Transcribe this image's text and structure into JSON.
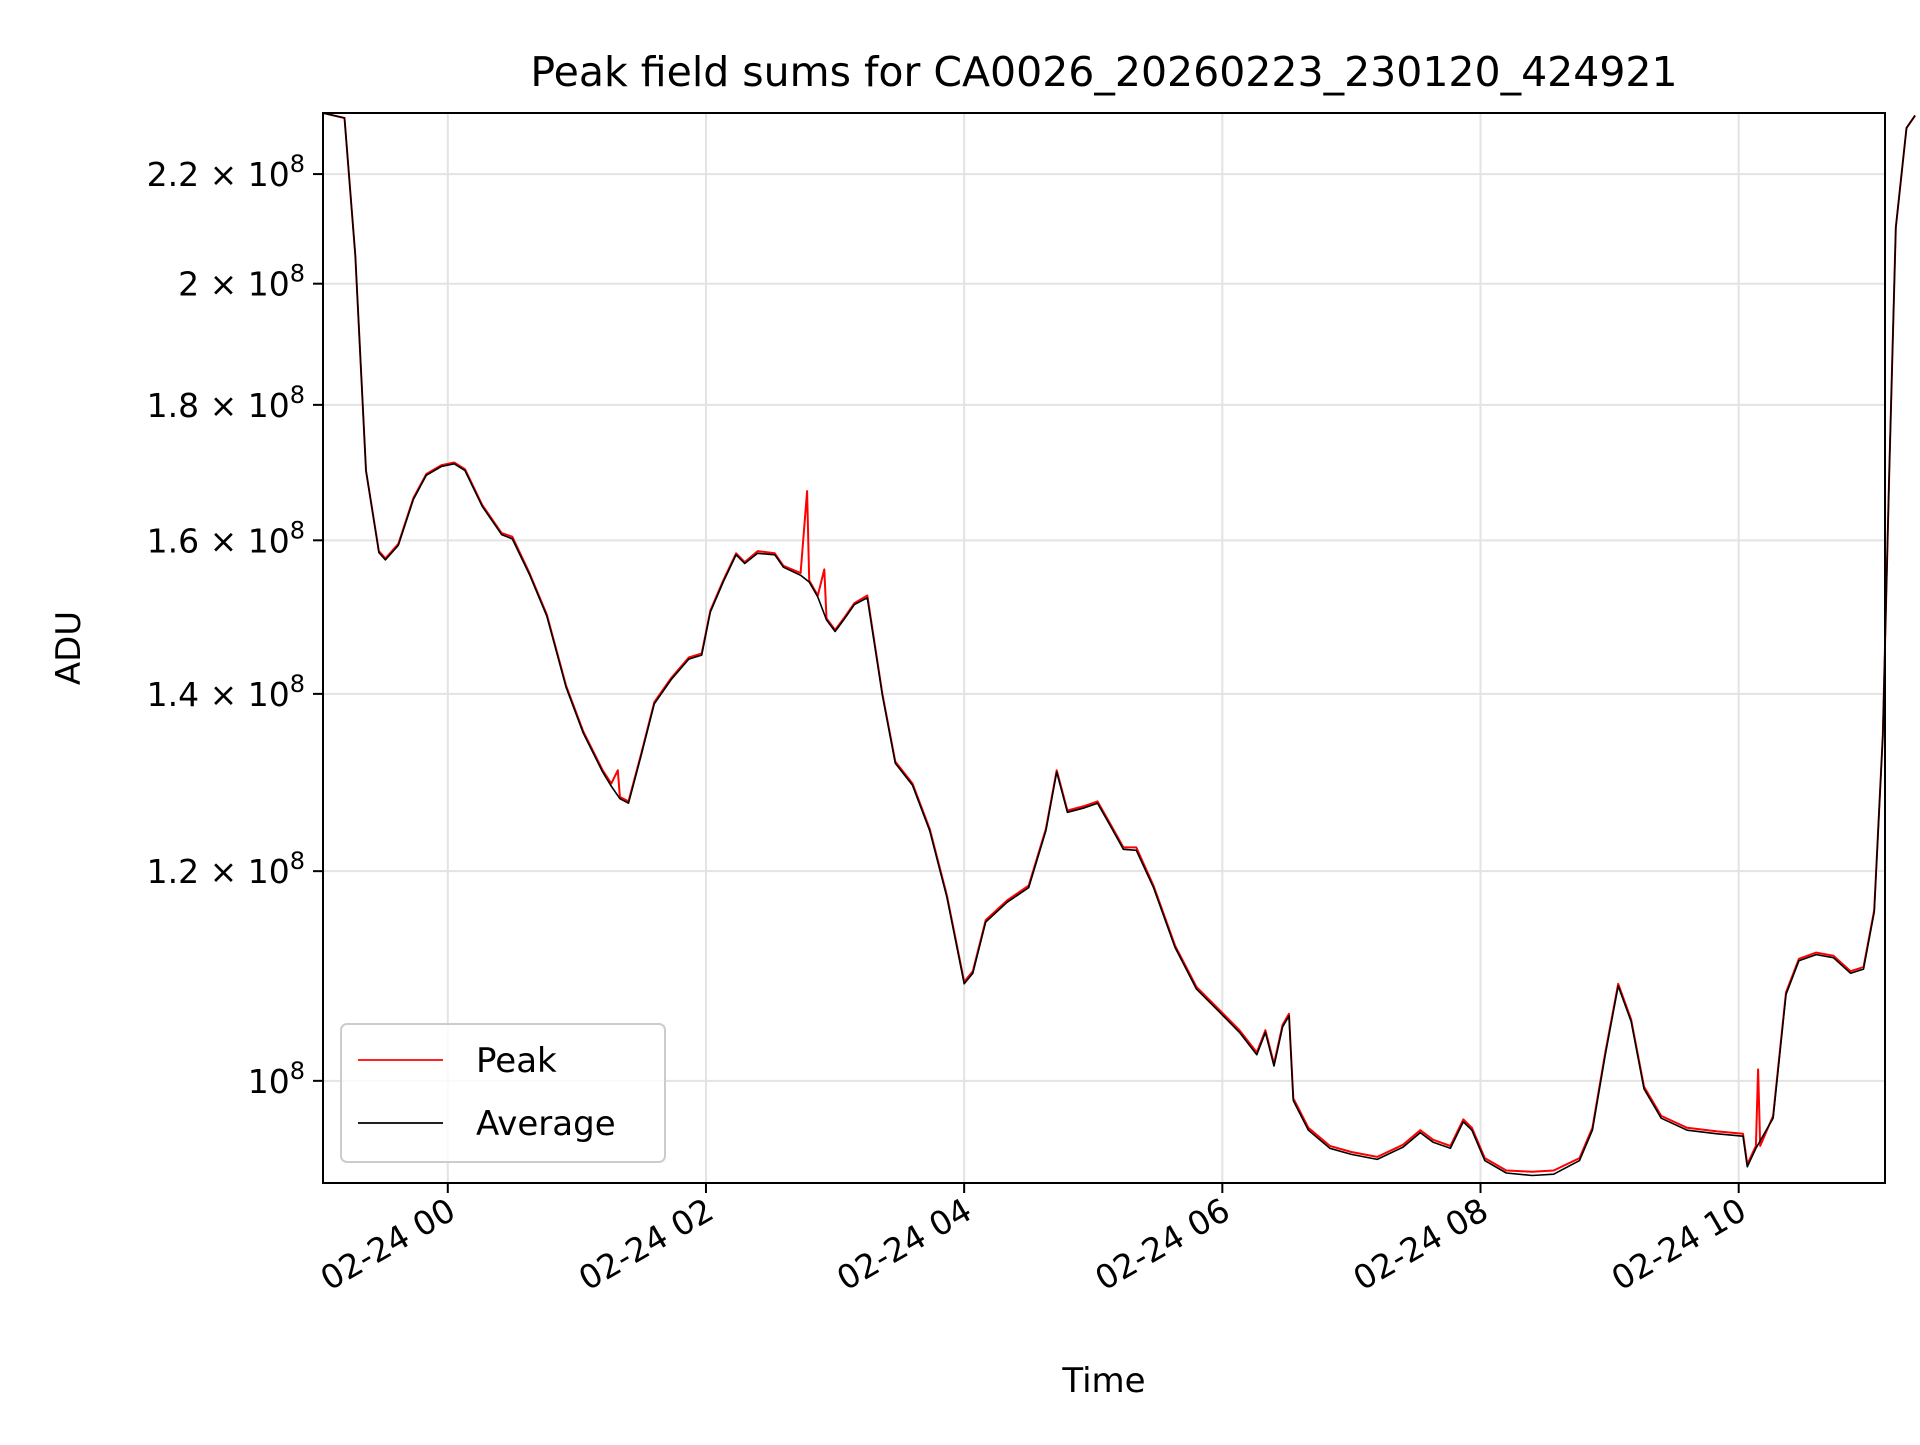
{
  "chart_data": {
    "type": "line",
    "title": "Peak field sums for CA0026_20260223_230120_424921",
    "xlabel": "Time",
    "ylabel": "ADU",
    "yscale": "log",
    "grid": true,
    "legend_position": "lower-left",
    "xlim": [
      "2026-02-23 23:02",
      "2026-02-24 11:08"
    ],
    "ylim": [
      91500000,
      232000000
    ],
    "x_ticks": [
      {
        "value": "2026-02-24 00:00",
        "label": "02-24 00"
      },
      {
        "value": "2026-02-24 02:00",
        "label": "02-24 02"
      },
      {
        "value": "2026-02-24 04:00",
        "label": "02-24 04"
      },
      {
        "value": "2026-02-24 06:00",
        "label": "02-24 06"
      },
      {
        "value": "2026-02-24 08:00",
        "label": "02-24 08"
      },
      {
        "value": "2026-02-24 10:00",
        "label": "02-24 10"
      }
    ],
    "y_ticks": [
      {
        "value": 100000000,
        "mantissa": "",
        "exponent": "8"
      },
      {
        "value": 120000000,
        "mantissa": "1.2",
        "exponent": "8"
      },
      {
        "value": 140000000,
        "mantissa": "1.4",
        "exponent": "8"
      },
      {
        "value": 160000000,
        "mantissa": "1.6",
        "exponent": "8"
      },
      {
        "value": 180000000,
        "mantissa": "1.8",
        "exponent": "8"
      },
      {
        "value": 200000000,
        "mantissa": "2",
        "exponent": "8"
      },
      {
        "value": 220000000,
        "mantissa": "2.2",
        "exponent": "8"
      }
    ],
    "series": [
      {
        "name": "Peak",
        "color": "#ff0000",
        "points": [
          [
            "2026-02-23 23:02",
            232000000
          ],
          [
            "2026-02-23 23:12",
            231000000
          ],
          [
            "2026-02-23 23:17",
            205000000
          ],
          [
            "2026-02-23 23:22",
            170000000
          ],
          [
            "2026-02-23 23:28",
            158500000
          ],
          [
            "2026-02-23 23:31",
            157500000
          ],
          [
            "2026-02-23 23:37",
            159500000
          ],
          [
            "2026-02-23 23:44",
            166000000
          ],
          [
            "2026-02-23 23:50",
            169500000
          ],
          [
            "2026-02-23 23:57",
            170800000
          ],
          [
            "2026-02-24 00:03",
            171200000
          ],
          [
            "2026-02-24 00:08",
            170200000
          ],
          [
            "2026-02-24 00:16",
            165000000
          ],
          [
            "2026-02-24 00:25",
            161000000
          ],
          [
            "2026-02-24 00:30",
            160500000
          ],
          [
            "2026-02-24 00:38",
            155500000
          ],
          [
            "2026-02-24 00:46",
            150000000
          ],
          [
            "2026-02-24 00:55",
            141000000
          ],
          [
            "2026-02-24 01:03",
            135500000
          ],
          [
            "2026-02-24 01:12",
            131000000
          ],
          [
            "2026-02-24 01:16",
            129500000
          ],
          [
            "2026-02-24 01:19",
            131000000
          ],
          [
            "2026-02-24 01:20",
            128000000
          ],
          [
            "2026-02-24 01:24",
            127500000
          ],
          [
            "2026-02-24 01:30",
            133000000
          ],
          [
            "2026-02-24 01:36",
            139000000
          ],
          [
            "2026-02-24 01:44",
            142000000
          ],
          [
            "2026-02-24 01:52",
            144500000
          ],
          [
            "2026-02-24 01:58",
            145000000
          ],
          [
            "2026-02-24 02:02",
            150500000
          ],
          [
            "2026-02-24 02:08",
            154500000
          ],
          [
            "2026-02-24 02:14",
            158200000
          ],
          [
            "2026-02-24 02:18",
            157000000
          ],
          [
            "2026-02-24 02:24",
            158500000
          ],
          [
            "2026-02-24 02:32",
            158200000
          ],
          [
            "2026-02-24 02:36",
            156500000
          ],
          [
            "2026-02-24 02:44",
            155500000
          ],
          [
            "2026-02-24 02:47",
            167000000
          ],
          [
            "2026-02-24 02:48",
            154500000
          ],
          [
            "2026-02-24 02:52",
            152500000
          ],
          [
            "2026-02-24 02:55",
            156000000
          ],
          [
            "2026-02-24 02:56",
            149500000
          ],
          [
            "2026-02-24 03:00",
            148000000
          ],
          [
            "2026-02-24 03:04",
            149500000
          ],
          [
            "2026-02-24 03:09",
            151500000
          ],
          [
            "2026-02-24 03:15",
            152500000
          ],
          [
            "2026-02-24 03:22",
            140000000
          ],
          [
            "2026-02-24 03:28",
            132000000
          ],
          [
            "2026-02-24 03:36",
            129500000
          ],
          [
            "2026-02-24 03:44",
            124500000
          ],
          [
            "2026-02-24 03:52",
            117500000
          ],
          [
            "2026-02-24 04:00",
            109000000
          ],
          [
            "2026-02-24 04:04",
            110000000
          ],
          [
            "2026-02-24 04:10",
            115000000
          ],
          [
            "2026-02-24 04:20",
            117000000
          ],
          [
            "2026-02-24 04:30",
            118500000
          ],
          [
            "2026-02-24 04:38",
            124500000
          ],
          [
            "2026-02-24 04:43",
            131000000
          ],
          [
            "2026-02-24 04:48",
            126500000
          ],
          [
            "2026-02-24 04:56",
            127000000
          ],
          [
            "2026-02-24 05:02",
            127500000
          ],
          [
            "2026-02-24 05:08",
            125000000
          ],
          [
            "2026-02-24 05:14",
            122500000
          ],
          [
            "2026-02-24 05:20",
            122500000
          ],
          [
            "2026-02-24 05:28",
            118500000
          ],
          [
            "2026-02-24 05:38",
            112500000
          ],
          [
            "2026-02-24 05:48",
            108500000
          ],
          [
            "2026-02-24 05:58",
            106500000
          ],
          [
            "2026-02-24 06:08",
            104500000
          ],
          [
            "2026-02-24 06:16",
            102500000
          ],
          [
            "2026-02-24 06:20",
            104500000
          ],
          [
            "2026-02-24 06:24",
            101500000
          ],
          [
            "2026-02-24 06:28",
            105000000
          ],
          [
            "2026-02-24 06:31",
            106000000
          ],
          [
            "2026-02-24 06:33",
            98500000
          ],
          [
            "2026-02-24 06:40",
            96000000
          ],
          [
            "2026-02-24 06:50",
            94500000
          ],
          [
            "2026-02-24 07:00",
            94000000
          ],
          [
            "2026-02-24 07:12",
            93600000
          ],
          [
            "2026-02-24 07:24",
            94600000
          ],
          [
            "2026-02-24 07:32",
            95800000
          ],
          [
            "2026-02-24 07:38",
            95000000
          ],
          [
            "2026-02-24 07:46",
            94500000
          ],
          [
            "2026-02-24 07:52",
            96700000
          ],
          [
            "2026-02-24 07:56",
            96000000
          ],
          [
            "2026-02-24 08:02",
            93500000
          ],
          [
            "2026-02-24 08:12",
            92500000
          ],
          [
            "2026-02-24 08:24",
            92400000
          ],
          [
            "2026-02-24 08:34",
            92500000
          ],
          [
            "2026-02-24 08:46",
            93500000
          ],
          [
            "2026-02-24 08:52",
            96000000
          ],
          [
            "2026-02-24 08:58",
            102500000
          ],
          [
            "2026-02-24 09:04",
            108800000
          ],
          [
            "2026-02-24 09:10",
            105500000
          ],
          [
            "2026-02-24 09:16",
            99500000
          ],
          [
            "2026-02-24 09:24",
            97000000
          ],
          [
            "2026-02-24 09:36",
            96000000
          ],
          [
            "2026-02-24 09:50",
            95700000
          ],
          [
            "2026-02-24 10:02",
            95500000
          ],
          [
            "2026-02-24 10:04",
            93000000
          ],
          [
            "2026-02-24 10:08",
            94500000
          ],
          [
            "2026-02-24 10:09",
            101000000
          ],
          [
            "2026-02-24 10:10",
            94500000
          ],
          [
            "2026-02-24 10:16",
            97000000
          ],
          [
            "2026-02-24 10:22",
            108000000
          ],
          [
            "2026-02-24 10:28",
            111200000
          ],
          [
            "2026-02-24 10:36",
            111800000
          ],
          [
            "2026-02-24 10:44",
            111500000
          ],
          [
            "2026-02-24 10:52",
            110000000
          ],
          [
            "2026-02-24 10:58",
            110400000
          ],
          [
            "2026-02-24 11:03",
            116000000
          ],
          [
            "2026-02-24 11:07",
            135000000
          ],
          [
            "2026-02-24 11:10",
            170000000
          ],
          [
            "2026-02-24 11:13",
            210000000
          ],
          [
            "2026-02-24 11:18",
            229000000
          ],
          [
            "2026-02-24 11:22",
            231500000
          ]
        ]
      },
      {
        "name": "Average",
        "color": "#000000",
        "points": [
          [
            "2026-02-23 23:02",
            232000000
          ],
          [
            "2026-02-23 23:12",
            231000000
          ],
          [
            "2026-02-23 23:17",
            205000000
          ],
          [
            "2026-02-23 23:22",
            170000000
          ],
          [
            "2026-02-23 23:28",
            158300000
          ],
          [
            "2026-02-23 23:31",
            157300000
          ],
          [
            "2026-02-23 23:37",
            159300000
          ],
          [
            "2026-02-23 23:44",
            165800000
          ],
          [
            "2026-02-23 23:50",
            169300000
          ],
          [
            "2026-02-23 23:57",
            170600000
          ],
          [
            "2026-02-24 00:03",
            171000000
          ],
          [
            "2026-02-24 00:08",
            170000000
          ],
          [
            "2026-02-24 00:16",
            164800000
          ],
          [
            "2026-02-24 00:25",
            160800000
          ],
          [
            "2026-02-24 00:30",
            160200000
          ],
          [
            "2026-02-24 00:38",
            155300000
          ],
          [
            "2026-02-24 00:46",
            149800000
          ],
          [
            "2026-02-24 00:55",
            140800000
          ],
          [
            "2026-02-24 01:03",
            135300000
          ],
          [
            "2026-02-24 01:12",
            130800000
          ],
          [
            "2026-02-24 01:16",
            129200000
          ],
          [
            "2026-02-24 01:20",
            127800000
          ],
          [
            "2026-02-24 01:24",
            127300000
          ],
          [
            "2026-02-24 01:30",
            132800000
          ],
          [
            "2026-02-24 01:36",
            138800000
          ],
          [
            "2026-02-24 01:44",
            141800000
          ],
          [
            "2026-02-24 01:52",
            144300000
          ],
          [
            "2026-02-24 01:58",
            144800000
          ],
          [
            "2026-02-24 02:02",
            150300000
          ],
          [
            "2026-02-24 02:08",
            154300000
          ],
          [
            "2026-02-24 02:14",
            158000000
          ],
          [
            "2026-02-24 02:18",
            156800000
          ],
          [
            "2026-02-24 02:24",
            158200000
          ],
          [
            "2026-02-24 02:32",
            158000000
          ],
          [
            "2026-02-24 02:36",
            156300000
          ],
          [
            "2026-02-24 02:44",
            155200000
          ],
          [
            "2026-02-24 02:48",
            154300000
          ],
          [
            "2026-02-24 02:52",
            152300000
          ],
          [
            "2026-02-24 02:56",
            149300000
          ],
          [
            "2026-02-24 03:00",
            147800000
          ],
          [
            "2026-02-24 03:04",
            149300000
          ],
          [
            "2026-02-24 03:09",
            151300000
          ],
          [
            "2026-02-24 03:15",
            152200000
          ],
          [
            "2026-02-24 03:22",
            139800000
          ],
          [
            "2026-02-24 03:28",
            131800000
          ],
          [
            "2026-02-24 03:36",
            129300000
          ],
          [
            "2026-02-24 03:44",
            124300000
          ],
          [
            "2026-02-24 03:52",
            117300000
          ],
          [
            "2026-02-24 04:00",
            108800000
          ],
          [
            "2026-02-24 04:04",
            109800000
          ],
          [
            "2026-02-24 04:10",
            114800000
          ],
          [
            "2026-02-24 04:20",
            116800000
          ],
          [
            "2026-02-24 04:30",
            118300000
          ],
          [
            "2026-02-24 04:38",
            124300000
          ],
          [
            "2026-02-24 04:43",
            130800000
          ],
          [
            "2026-02-24 04:48",
            126300000
          ],
          [
            "2026-02-24 04:56",
            126800000
          ],
          [
            "2026-02-24 05:02",
            127300000
          ],
          [
            "2026-02-24 05:08",
            124800000
          ],
          [
            "2026-02-24 05:14",
            122300000
          ],
          [
            "2026-02-24 05:20",
            122200000
          ],
          [
            "2026-02-24 05:28",
            118300000
          ],
          [
            "2026-02-24 05:38",
            112300000
          ],
          [
            "2026-02-24 05:48",
            108300000
          ],
          [
            "2026-02-24 05:58",
            106300000
          ],
          [
            "2026-02-24 06:08",
            104300000
          ],
          [
            "2026-02-24 06:16",
            102300000
          ],
          [
            "2026-02-24 06:20",
            104300000
          ],
          [
            "2026-02-24 06:24",
            101300000
          ],
          [
            "2026-02-24 06:28",
            104800000
          ],
          [
            "2026-02-24 06:31",
            105800000
          ],
          [
            "2026-02-24 06:33",
            98300000
          ],
          [
            "2026-02-24 06:40",
            95800000
          ],
          [
            "2026-02-24 06:50",
            94300000
          ],
          [
            "2026-02-24 07:00",
            93800000
          ],
          [
            "2026-02-24 07:12",
            93400000
          ],
          [
            "2026-02-24 07:24",
            94400000
          ],
          [
            "2026-02-24 07:32",
            95600000
          ],
          [
            "2026-02-24 07:38",
            94800000
          ],
          [
            "2026-02-24 07:46",
            94300000
          ],
          [
            "2026-02-24 07:52",
            96500000
          ],
          [
            "2026-02-24 07:56",
            95800000
          ],
          [
            "2026-02-24 08:02",
            93300000
          ],
          [
            "2026-02-24 08:12",
            92300000
          ],
          [
            "2026-02-24 08:24",
            92100000
          ],
          [
            "2026-02-24 08:34",
            92200000
          ],
          [
            "2026-02-24 08:46",
            93300000
          ],
          [
            "2026-02-24 08:52",
            95800000
          ],
          [
            "2026-02-24 08:58",
            102300000
          ],
          [
            "2026-02-24 09:04",
            108600000
          ],
          [
            "2026-02-24 09:10",
            105300000
          ],
          [
            "2026-02-24 09:16",
            99300000
          ],
          [
            "2026-02-24 09:24",
            96800000
          ],
          [
            "2026-02-24 09:36",
            95800000
          ],
          [
            "2026-02-24 09:50",
            95500000
          ],
          [
            "2026-02-24 10:02",
            95300000
          ],
          [
            "2026-02-24 10:04",
            92800000
          ],
          [
            "2026-02-24 10:08",
            94300000
          ],
          [
            "2026-02-24 10:16",
            96800000
          ],
          [
            "2026-02-24 10:22",
            107800000
          ],
          [
            "2026-02-24 10:28",
            111000000
          ],
          [
            "2026-02-24 10:36",
            111600000
          ],
          [
            "2026-02-24 10:44",
            111300000
          ],
          [
            "2026-02-24 10:52",
            109800000
          ],
          [
            "2026-02-24 10:58",
            110200000
          ],
          [
            "2026-02-24 11:03",
            115800000
          ],
          [
            "2026-02-24 11:07",
            135000000
          ],
          [
            "2026-02-24 11:10",
            170000000
          ],
          [
            "2026-02-24 11:13",
            210000000
          ],
          [
            "2026-02-24 11:18",
            229000000
          ],
          [
            "2026-02-24 11:22",
            231500000
          ]
        ]
      }
    ]
  }
}
